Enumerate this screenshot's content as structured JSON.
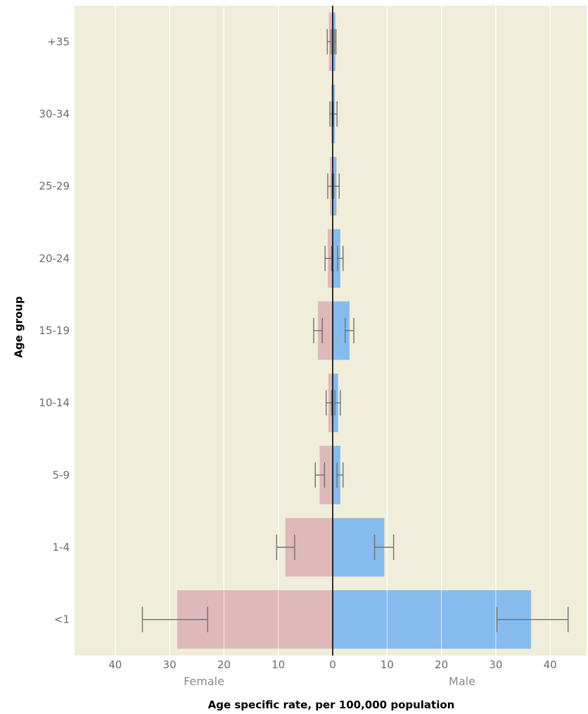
{
  "chart_data": {
    "type": "bar",
    "orientation": "horizontal",
    "layout": "population-pyramid",
    "categories": [
      "+35",
      "30-34",
      "25-29",
      "20-24",
      "15-19",
      "10-14",
      "5-9",
      "1-4",
      "<1"
    ],
    "series": [
      {
        "name": "Female",
        "color": "#deb8bb",
        "values": [
          0.7,
          0.3,
          0.5,
          0.9,
          2.7,
          0.8,
          2.4,
          8.7,
          28.6
        ],
        "error_low": [
          0.3,
          0.1,
          0.1,
          0.2,
          1.9,
          0.2,
          1.5,
          7.0,
          23.0
        ],
        "error_high": [
          1.0,
          0.5,
          0.9,
          1.4,
          3.5,
          1.2,
          3.2,
          10.3,
          35.0
        ]
      },
      {
        "name": "Male",
        "color": "#86bbed",
        "values": [
          0.5,
          0.4,
          0.7,
          1.4,
          3.1,
          1.0,
          1.4,
          9.5,
          36.5
        ],
        "error_low": [
          0.3,
          0.1,
          0.2,
          0.9,
          2.3,
          0.4,
          0.8,
          7.7,
          30.2
        ],
        "error_high": [
          0.6,
          0.8,
          1.2,
          1.9,
          3.9,
          1.4,
          1.9,
          11.2,
          43.3
        ]
      }
    ],
    "x_ticks": [
      "40",
      "30",
      "20",
      "10",
      "0",
      "10",
      "20",
      "30",
      "40"
    ],
    "x_tick_values": [
      -40,
      -30,
      -20,
      -10,
      0,
      10,
      20,
      30,
      40
    ],
    "xlim": [
      -47,
      47
    ],
    "xlabel": "Age specific rate, per 100,000 population",
    "ylabel": "Age group",
    "side_labels": {
      "left": "Female",
      "right": "Male"
    },
    "grid": true,
    "colors": {
      "panel": "#f0eedb",
      "grid": "#ffffff",
      "error_bar": "#707070",
      "zero_line": "#000000"
    }
  }
}
